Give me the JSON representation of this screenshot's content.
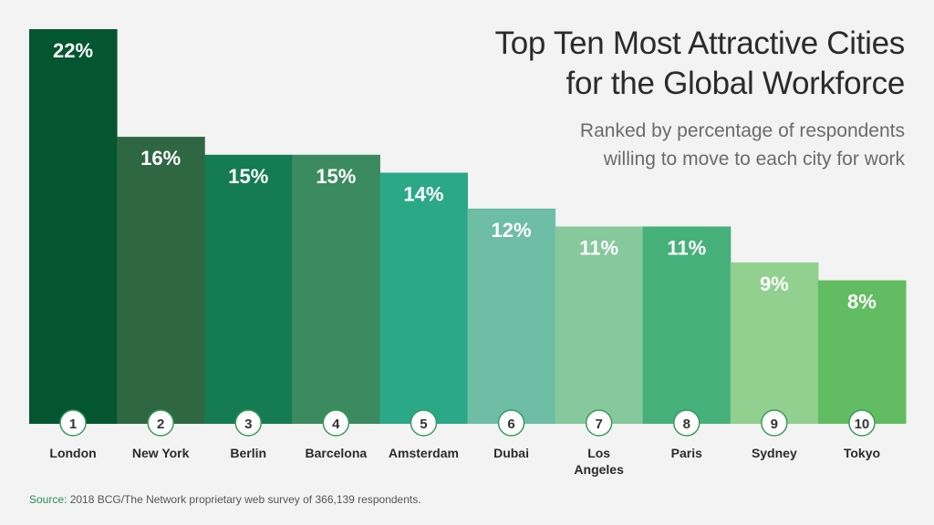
{
  "chart_data": {
    "type": "bar",
    "title_lines": [
      "Top Ten Most Attractive Cities",
      "for the Global Workforce"
    ],
    "subtitle_lines": [
      "Ranked by percentage of respondents",
      "willing to move to each city for work"
    ],
    "categories": [
      {
        "rank": "1",
        "city": [
          "London"
        ],
        "label": "22%",
        "value": 22,
        "color": "#03562f"
      },
      {
        "rank": "2",
        "city": [
          "New York"
        ],
        "label": "16%",
        "value": 16,
        "color": "#2f6743"
      },
      {
        "rank": "3",
        "city": [
          "Berlin"
        ],
        "label": "15%",
        "value": 15,
        "color": "#157b52"
      },
      {
        "rank": "4",
        "city": [
          "Barcelona"
        ],
        "label": "15%",
        "value": 15,
        "color": "#3c8a60"
      },
      {
        "rank": "5",
        "city": [
          "Amsterdam"
        ],
        "label": "14%",
        "value": 14,
        "color": "#2ba888"
      },
      {
        "rank": "6",
        "city": [
          "Dubai"
        ],
        "label": "12%",
        "value": 12,
        "color": "#6ebda5"
      },
      {
        "rank": "7",
        "city": [
          "Los",
          "Angeles"
        ],
        "label": "11%",
        "value": 11,
        "color": "#87c89c"
      },
      {
        "rank": "8",
        "city": [
          "Paris"
        ],
        "label": "11%",
        "value": 11,
        "color": "#46b07a"
      },
      {
        "rank": "9",
        "city": [
          "Sydney"
        ],
        "label": "9%",
        "value": 9,
        "color": "#91d08f"
      },
      {
        "rank": "10",
        "city": [
          "Tokyo"
        ],
        "label": "8%",
        "value": 8,
        "color": "#62bc62"
      }
    ],
    "ylim": [
      0,
      22
    ],
    "grid": false,
    "legend": "none"
  },
  "source": {
    "label": "Source:",
    "text": " 2018 BCG/The Network proprietary web survey of 366,139 respondents."
  }
}
